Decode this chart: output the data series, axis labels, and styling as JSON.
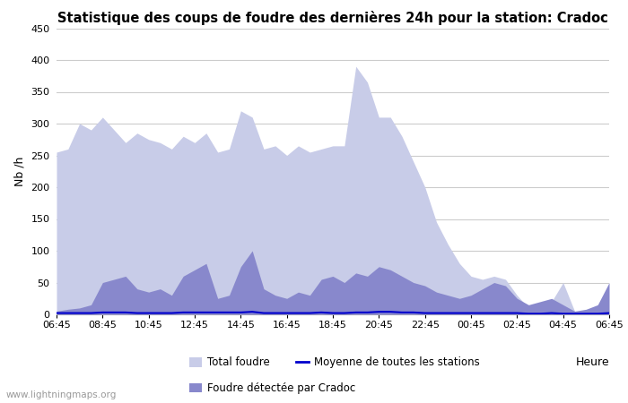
{
  "title": "Statistique des coups de foudre des dernières 24h pour la station: Cradoc",
  "ylabel": "Nb /h",
  "xlabel": "Heure",
  "watermark": "www.lightningmaps.org",
  "ylim": [
    0,
    450
  ],
  "yticks": [
    0,
    50,
    100,
    150,
    200,
    250,
    300,
    350,
    400,
    450
  ],
  "xtick_labels": [
    "06:45",
    "08:45",
    "10:45",
    "12:45",
    "14:45",
    "16:45",
    "18:45",
    "20:45",
    "22:45",
    "00:45",
    "02:45",
    "04:45",
    "06:45"
  ],
  "bg_color": "#ffffff",
  "grid_color": "#cccccc",
  "total_color": "#c8cce8",
  "detected_color": "#8888cc",
  "mean_color": "#0000cc",
  "legend_total": "Total foudre",
  "legend_detected": "Foudre détectée par Cradoc",
  "legend_mean": "Moyenne de toutes les stations",
  "total_foudre": [
    255,
    260,
    300,
    290,
    310,
    290,
    270,
    285,
    275,
    270,
    260,
    280,
    270,
    285,
    255,
    260,
    320,
    310,
    260,
    265,
    250,
    265,
    255,
    260,
    265,
    265,
    390,
    365,
    310,
    310,
    280,
    240,
    200,
    145,
    110,
    80,
    60,
    55,
    60,
    55,
    30,
    10,
    15,
    20,
    50,
    5,
    5,
    5,
    5
  ],
  "foudre_detectee": [
    5,
    8,
    10,
    15,
    50,
    55,
    60,
    40,
    35,
    40,
    30,
    60,
    70,
    80,
    25,
    30,
    75,
    100,
    40,
    30,
    25,
    35,
    30,
    55,
    60,
    50,
    65,
    60,
    75,
    70,
    60,
    50,
    45,
    35,
    30,
    25,
    30,
    40,
    50,
    45,
    25,
    15,
    20,
    25,
    15,
    5,
    8,
    15,
    50
  ],
  "moyenne": [
    2,
    2,
    2,
    2,
    3,
    3,
    3,
    2,
    2,
    2,
    2,
    3,
    3,
    3,
    3,
    3,
    3,
    4,
    2,
    2,
    2,
    2,
    2,
    3,
    2,
    2,
    3,
    3,
    4,
    4,
    3,
    3,
    2,
    2,
    2,
    2,
    2,
    2,
    2,
    2,
    2,
    1,
    1,
    2,
    1,
    1,
    1,
    1,
    2
  ]
}
